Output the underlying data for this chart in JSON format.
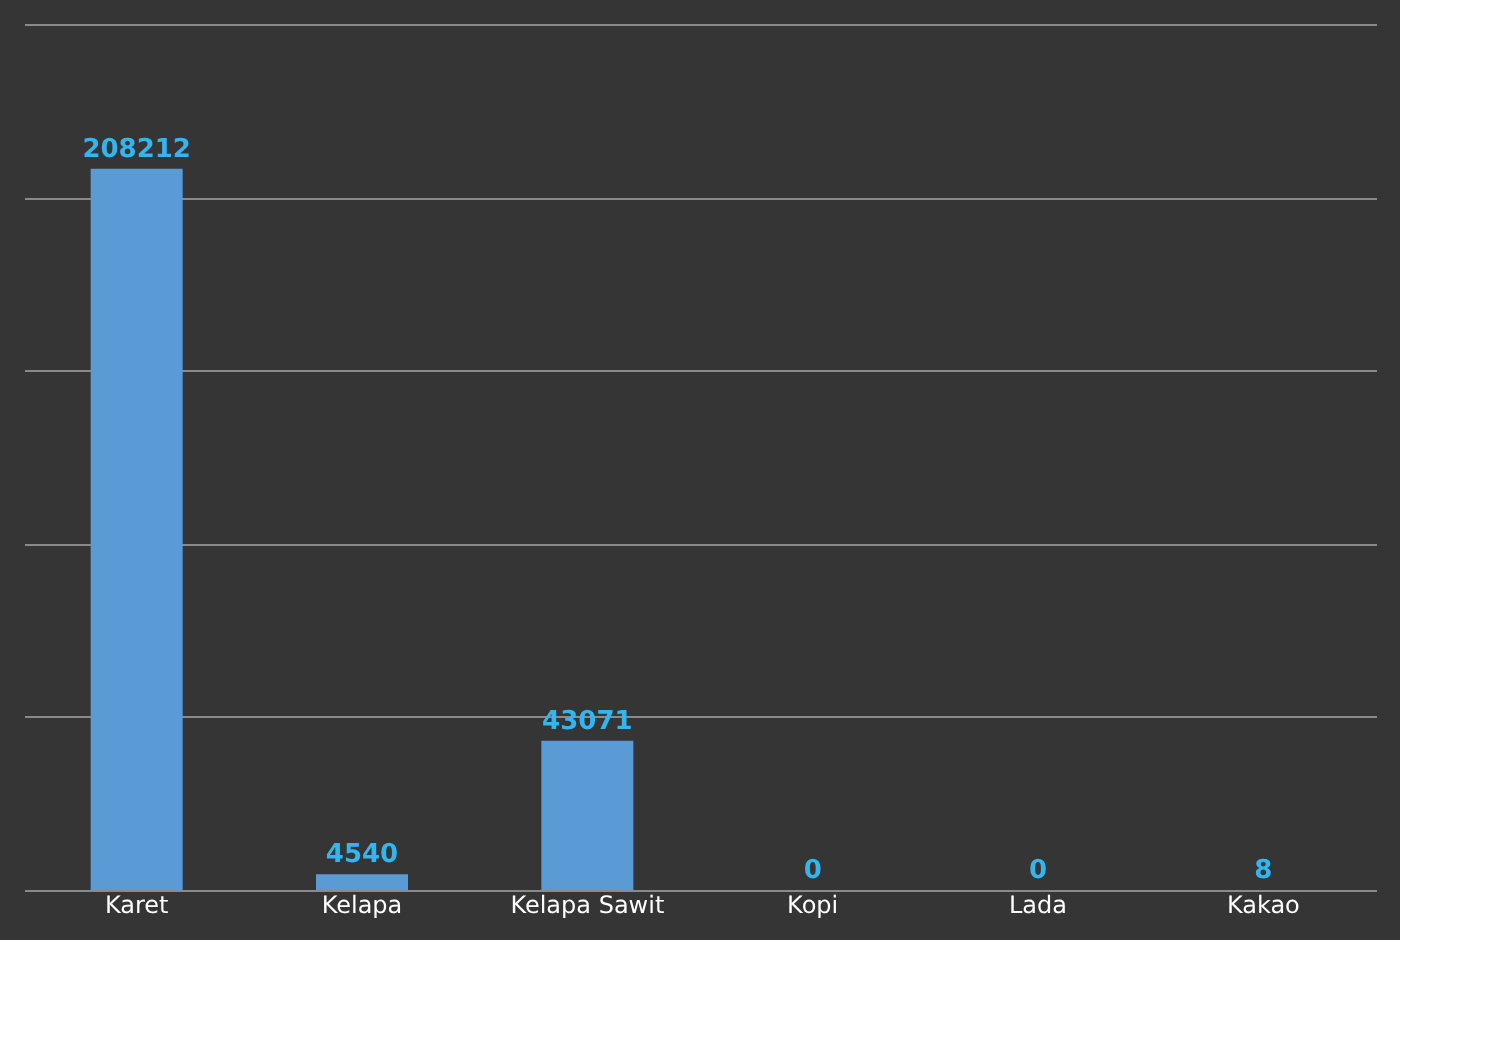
{
  "chart_data": {
    "type": "bar",
    "categories": [
      "Karet",
      "Kelapa",
      "Kelapa Sawit",
      "Kopi",
      "Lada",
      "Kakao"
    ],
    "values": [
      208212,
      4540,
      43071,
      0,
      0,
      8
    ],
    "color": "#5b9bd5",
    "ylim": [
      0,
      250000
    ],
    "yticks": [
      {
        "value": 0,
        "label": null
      },
      {
        "value": 50000,
        "label": null
      },
      {
        "value": 100000,
        "label": null
      },
      {
        "value": 150000,
        "label": null
      },
      {
        "value": 200000,
        "label": null
      },
      {
        "value": 250000,
        "label": null
      }
    ],
    "grid": "y",
    "tick_labels": "x",
    "data_labels": true
  }
}
